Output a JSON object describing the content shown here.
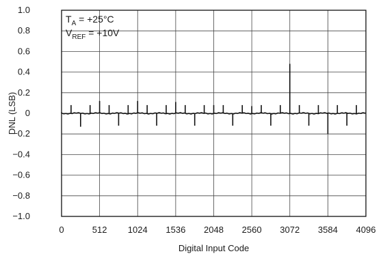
{
  "chart_data": {
    "type": "line",
    "title": "",
    "xlabel": "Digital Input Code",
    "ylabel": "DNL (LSB)",
    "xlim": [
      0,
      4096
    ],
    "ylim": [
      -1.0,
      1.0
    ],
    "x_ticks": [
      0,
      512,
      1024,
      1536,
      2048,
      2560,
      3072,
      3584,
      4096
    ],
    "x_tick_labels": [
      "0",
      "512",
      "1024",
      "1536",
      "2048",
      "2560",
      "3072",
      "3584",
      "4096"
    ],
    "y_ticks": [
      1.0,
      0.8,
      0.6,
      0.4,
      0.2,
      0,
      -0.2,
      -0.4,
      -0.6,
      -0.8,
      -1.0
    ],
    "y_tick_labels": [
      "1.0",
      "0.8",
      "0.6",
      "0.4",
      "0.2",
      "0",
      "−0.2",
      "−0.4",
      "−0.6",
      "−0.8",
      "−1.0"
    ],
    "grid": true,
    "annotations": [
      {
        "main": "T",
        "sub": "A",
        "rest": " = +25°C"
      },
      {
        "main": "V",
        "sub": "REF",
        "rest": " = +10V"
      }
    ],
    "baseline": 0,
    "spikes": [
      {
        "x": 128,
        "y": 0.08
      },
      {
        "x": 256,
        "y": -0.13
      },
      {
        "x": 384,
        "y": 0.08
      },
      {
        "x": 512,
        "y": 0.12
      },
      {
        "x": 640,
        "y": 0.08
      },
      {
        "x": 768,
        "y": -0.12
      },
      {
        "x": 896,
        "y": 0.08
      },
      {
        "x": 1024,
        "y": 0.12
      },
      {
        "x": 1152,
        "y": 0.08
      },
      {
        "x": 1280,
        "y": -0.12
      },
      {
        "x": 1408,
        "y": 0.08
      },
      {
        "x": 1536,
        "y": 0.11
      },
      {
        "x": 1664,
        "y": 0.08
      },
      {
        "x": 1792,
        "y": -0.12
      },
      {
        "x": 1920,
        "y": 0.08
      },
      {
        "x": 2048,
        "y": 0.08
      },
      {
        "x": 2176,
        "y": 0.08
      },
      {
        "x": 2304,
        "y": -0.12
      },
      {
        "x": 2432,
        "y": 0.08
      },
      {
        "x": 2560,
        "y": 0.07
      },
      {
        "x": 2688,
        "y": 0.08
      },
      {
        "x": 2816,
        "y": -0.12
      },
      {
        "x": 2944,
        "y": 0.08
      },
      {
        "x": 3072,
        "y": 0.48
      },
      {
        "x": 3200,
        "y": 0.08
      },
      {
        "x": 3328,
        "y": -0.12
      },
      {
        "x": 3456,
        "y": 0.08
      },
      {
        "x": 3584,
        "y": -0.2
      },
      {
        "x": 3712,
        "y": 0.08
      },
      {
        "x": 3840,
        "y": -0.12
      },
      {
        "x": 3968,
        "y": 0.08
      }
    ],
    "colors": {
      "line": "#111111",
      "grid": "#444444",
      "frame": "#111111"
    }
  }
}
